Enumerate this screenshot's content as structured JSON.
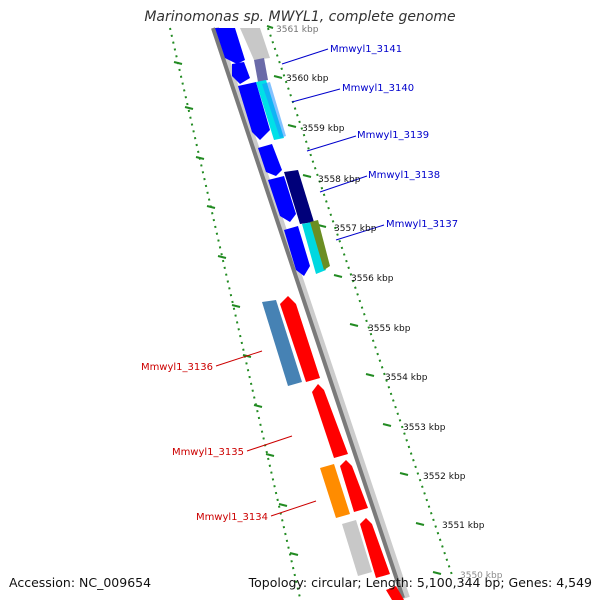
{
  "title": "Marinomonas sp. MWYL1, complete genome",
  "footer": {
    "accession": "Accession: NC_009654",
    "summary": "Topology: circular; Length: 5,100,344 bp; Genes: 4,549"
  },
  "tick_labels": [
    "3561 kbp",
    "3560 kbp",
    "3559 kbp",
    "3558 kbp",
    "3557 kbp",
    "3556 kbp",
    "3555 kbp",
    "3554 kbp",
    "3553 kbp",
    "3552 kbp",
    "3551 kbp",
    "3550 kbp"
  ],
  "gene_labels": {
    "plus": [
      "Mmwyl1_3141",
      "Mmwyl1_3140",
      "Mmwyl1_3139",
      "Mmwyl1_3138",
      "Mmwyl1_3137"
    ],
    "minus": [
      "Mmwyl1_3136",
      "Mmwyl1_3135",
      "Mmwyl1_3134"
    ]
  },
  "colors": {
    "forward_gene": "#0000ff",
    "reverse_gene": "#ff0000",
    "backbone": "#888888",
    "tick_marks": "#228b22",
    "label_plus": "#0000cc",
    "label_minus": "#cc0000"
  }
}
